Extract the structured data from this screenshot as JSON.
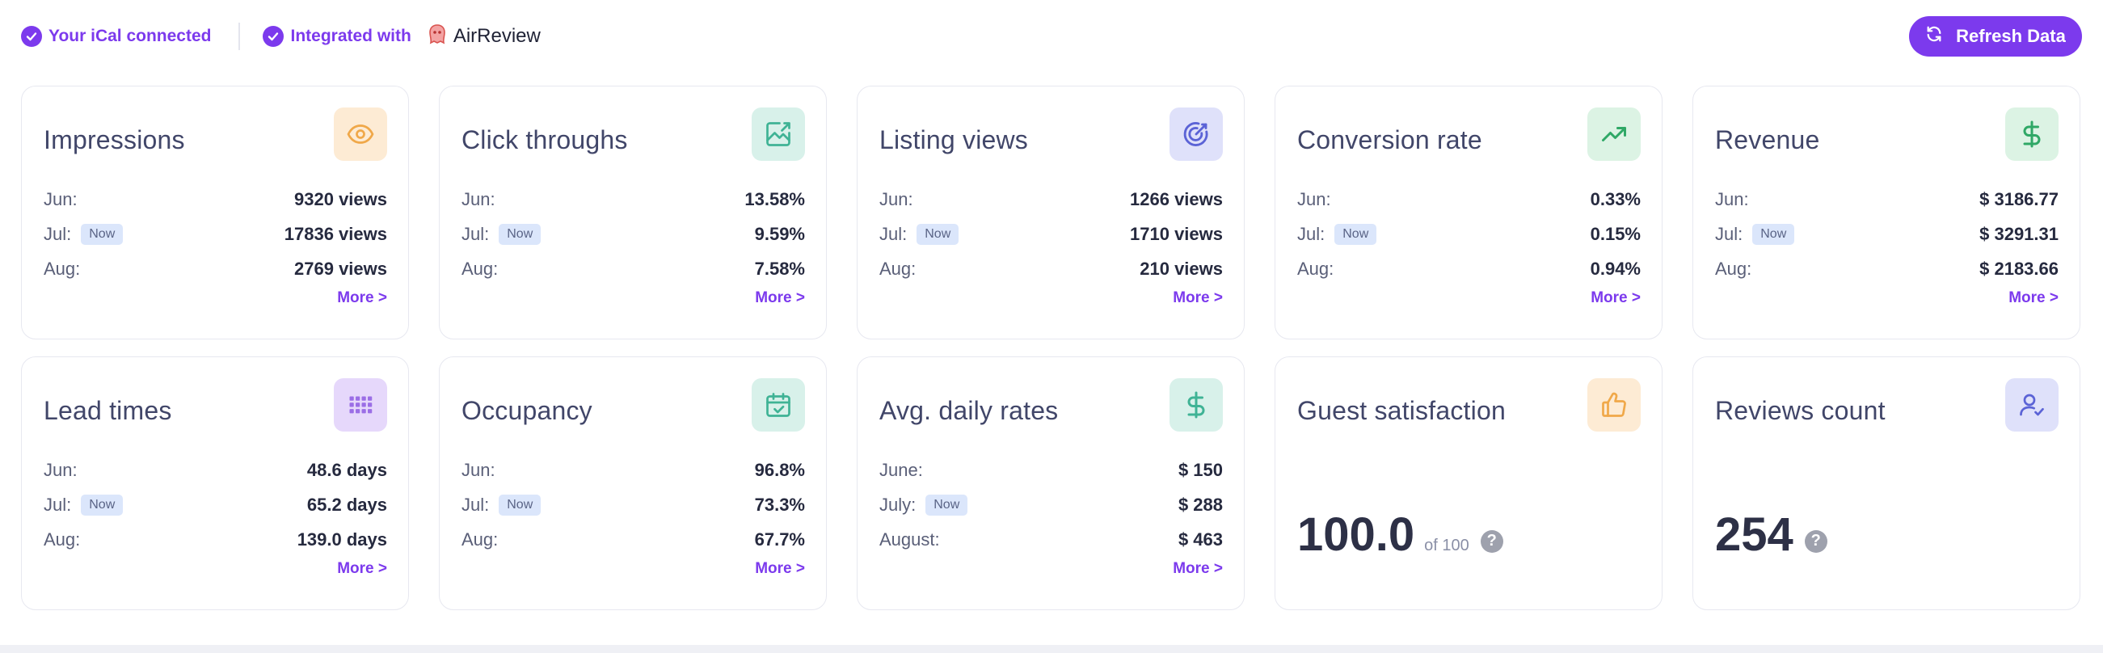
{
  "topbar": {
    "ical_text": "Your iCal connected",
    "integrated_text": "Integrated with",
    "brand_name": "AirReview",
    "refresh_label": "Refresh Data"
  },
  "common": {
    "now_badge": "Now",
    "more_link": "More >"
  },
  "cards": {
    "impressions": {
      "title": "Impressions",
      "icon": "eye-icon",
      "rows": [
        {
          "label": "Jun:",
          "value": "9320 views"
        },
        {
          "label": "Jul:",
          "value": "17836 views"
        },
        {
          "label": "Aug:",
          "value": "2769 views"
        }
      ]
    },
    "click_throughs": {
      "title": "Click throughs",
      "icon": "click-image-icon",
      "rows": [
        {
          "label": "Jun:",
          "value": "13.58%"
        },
        {
          "label": "Jul:",
          "value": "9.59%"
        },
        {
          "label": "Aug:",
          "value": "7.58%"
        }
      ]
    },
    "listing_views": {
      "title": "Listing views",
      "icon": "target-icon",
      "rows": [
        {
          "label": "Jun:",
          "value": "1266 views"
        },
        {
          "label": "Jul:",
          "value": "1710 views"
        },
        {
          "label": "Aug:",
          "value": "210 views"
        }
      ]
    },
    "conversion_rate": {
      "title": "Conversion rate",
      "icon": "trending-up-icon",
      "rows": [
        {
          "label": "Jun:",
          "value": "0.33%"
        },
        {
          "label": "Jul:",
          "value": "0.15%"
        },
        {
          "label": "Aug:",
          "value": "0.94%"
        }
      ]
    },
    "revenue": {
      "title": "Revenue",
      "icon": "dollar-icon",
      "rows": [
        {
          "label": "Jun:",
          "value": "$ 3186.77"
        },
        {
          "label": "Jul:",
          "value": "$ 3291.31"
        },
        {
          "label": "Aug:",
          "value": "$ 2183.66"
        }
      ]
    },
    "lead_times": {
      "title": "Lead times",
      "icon": "grid-icon",
      "rows": [
        {
          "label": "Jun:",
          "value": "48.6 days"
        },
        {
          "label": "Jul:",
          "value": "65.2 days"
        },
        {
          "label": "Aug:",
          "value": "139.0 days"
        }
      ]
    },
    "occupancy": {
      "title": "Occupancy",
      "icon": "calendar-check-icon",
      "rows": [
        {
          "label": "Jun:",
          "value": "96.8%"
        },
        {
          "label": "Jul:",
          "value": "73.3%"
        },
        {
          "label": "Aug:",
          "value": "67.7%"
        }
      ]
    },
    "avg_daily_rates": {
      "title": "Avg. daily rates",
      "icon": "dollar-icon",
      "rows": [
        {
          "label": "June:",
          "value": "$ 150"
        },
        {
          "label": "July:",
          "value": "$ 288"
        },
        {
          "label": "August:",
          "value": "$ 463"
        }
      ]
    },
    "guest_satisfaction": {
      "title": "Guest satisfaction",
      "icon": "thumbs-up-icon",
      "value": "100.0",
      "sub": "of 100",
      "help": "?"
    },
    "reviews_count": {
      "title": "Reviews count",
      "icon": "user-check-icon",
      "value": "254",
      "help": "?"
    }
  },
  "colors": {
    "accent": "#7c3aed",
    "icon_orange_bg": "#fdebd4",
    "icon_teal_bg": "#d8f1ea",
    "icon_indigo_bg": "#dfe1fa",
    "icon_green_bg": "#dcf3e4",
    "icon_purple_bg": "#e6d8fb"
  }
}
